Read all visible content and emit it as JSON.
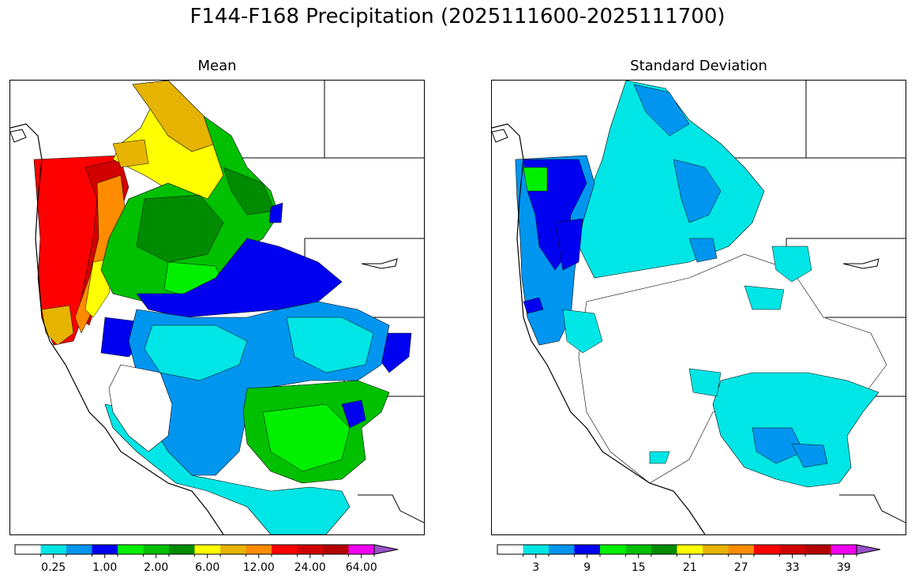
{
  "figure": {
    "title": "F144-F168 Precipitation (2025111600-2025111700)"
  },
  "panels": [
    {
      "title": "Mean",
      "colorbar": {
        "colors": [
          "#ffffff",
          "#00e5e5",
          "#0096f0",
          "#0000f0",
          "#00f000",
          "#00c000",
          "#008c00",
          "#ffff00",
          "#e6b400",
          "#ff8c00",
          "#ff0000",
          "#d20000",
          "#b40000",
          "#f000f0",
          "#9650c8"
        ],
        "tick_labels": [
          "0.25",
          "1.00",
          "2.00",
          "6.00",
          "12.00",
          "24.00",
          "64.00"
        ],
        "tick_boundaries": [
          1,
          3,
          5,
          7,
          9,
          11,
          13
        ],
        "extend": "max"
      }
    },
    {
      "title": "Standard Deviation",
      "colorbar": {
        "colors": [
          "#ffffff",
          "#00e5e5",
          "#0096f0",
          "#0000f0",
          "#00f000",
          "#00c000",
          "#008c00",
          "#ffff00",
          "#e6b400",
          "#ff8c00",
          "#ff0000",
          "#d20000",
          "#b40000",
          "#f000f0",
          "#9650c8"
        ],
        "tick_labels": [
          "3",
          "9",
          "15",
          "21",
          "27",
          "33",
          "39"
        ],
        "tick_boundaries": [
          1,
          3,
          5,
          7,
          9,
          11,
          13
        ],
        "extend": "max"
      }
    }
  ]
}
